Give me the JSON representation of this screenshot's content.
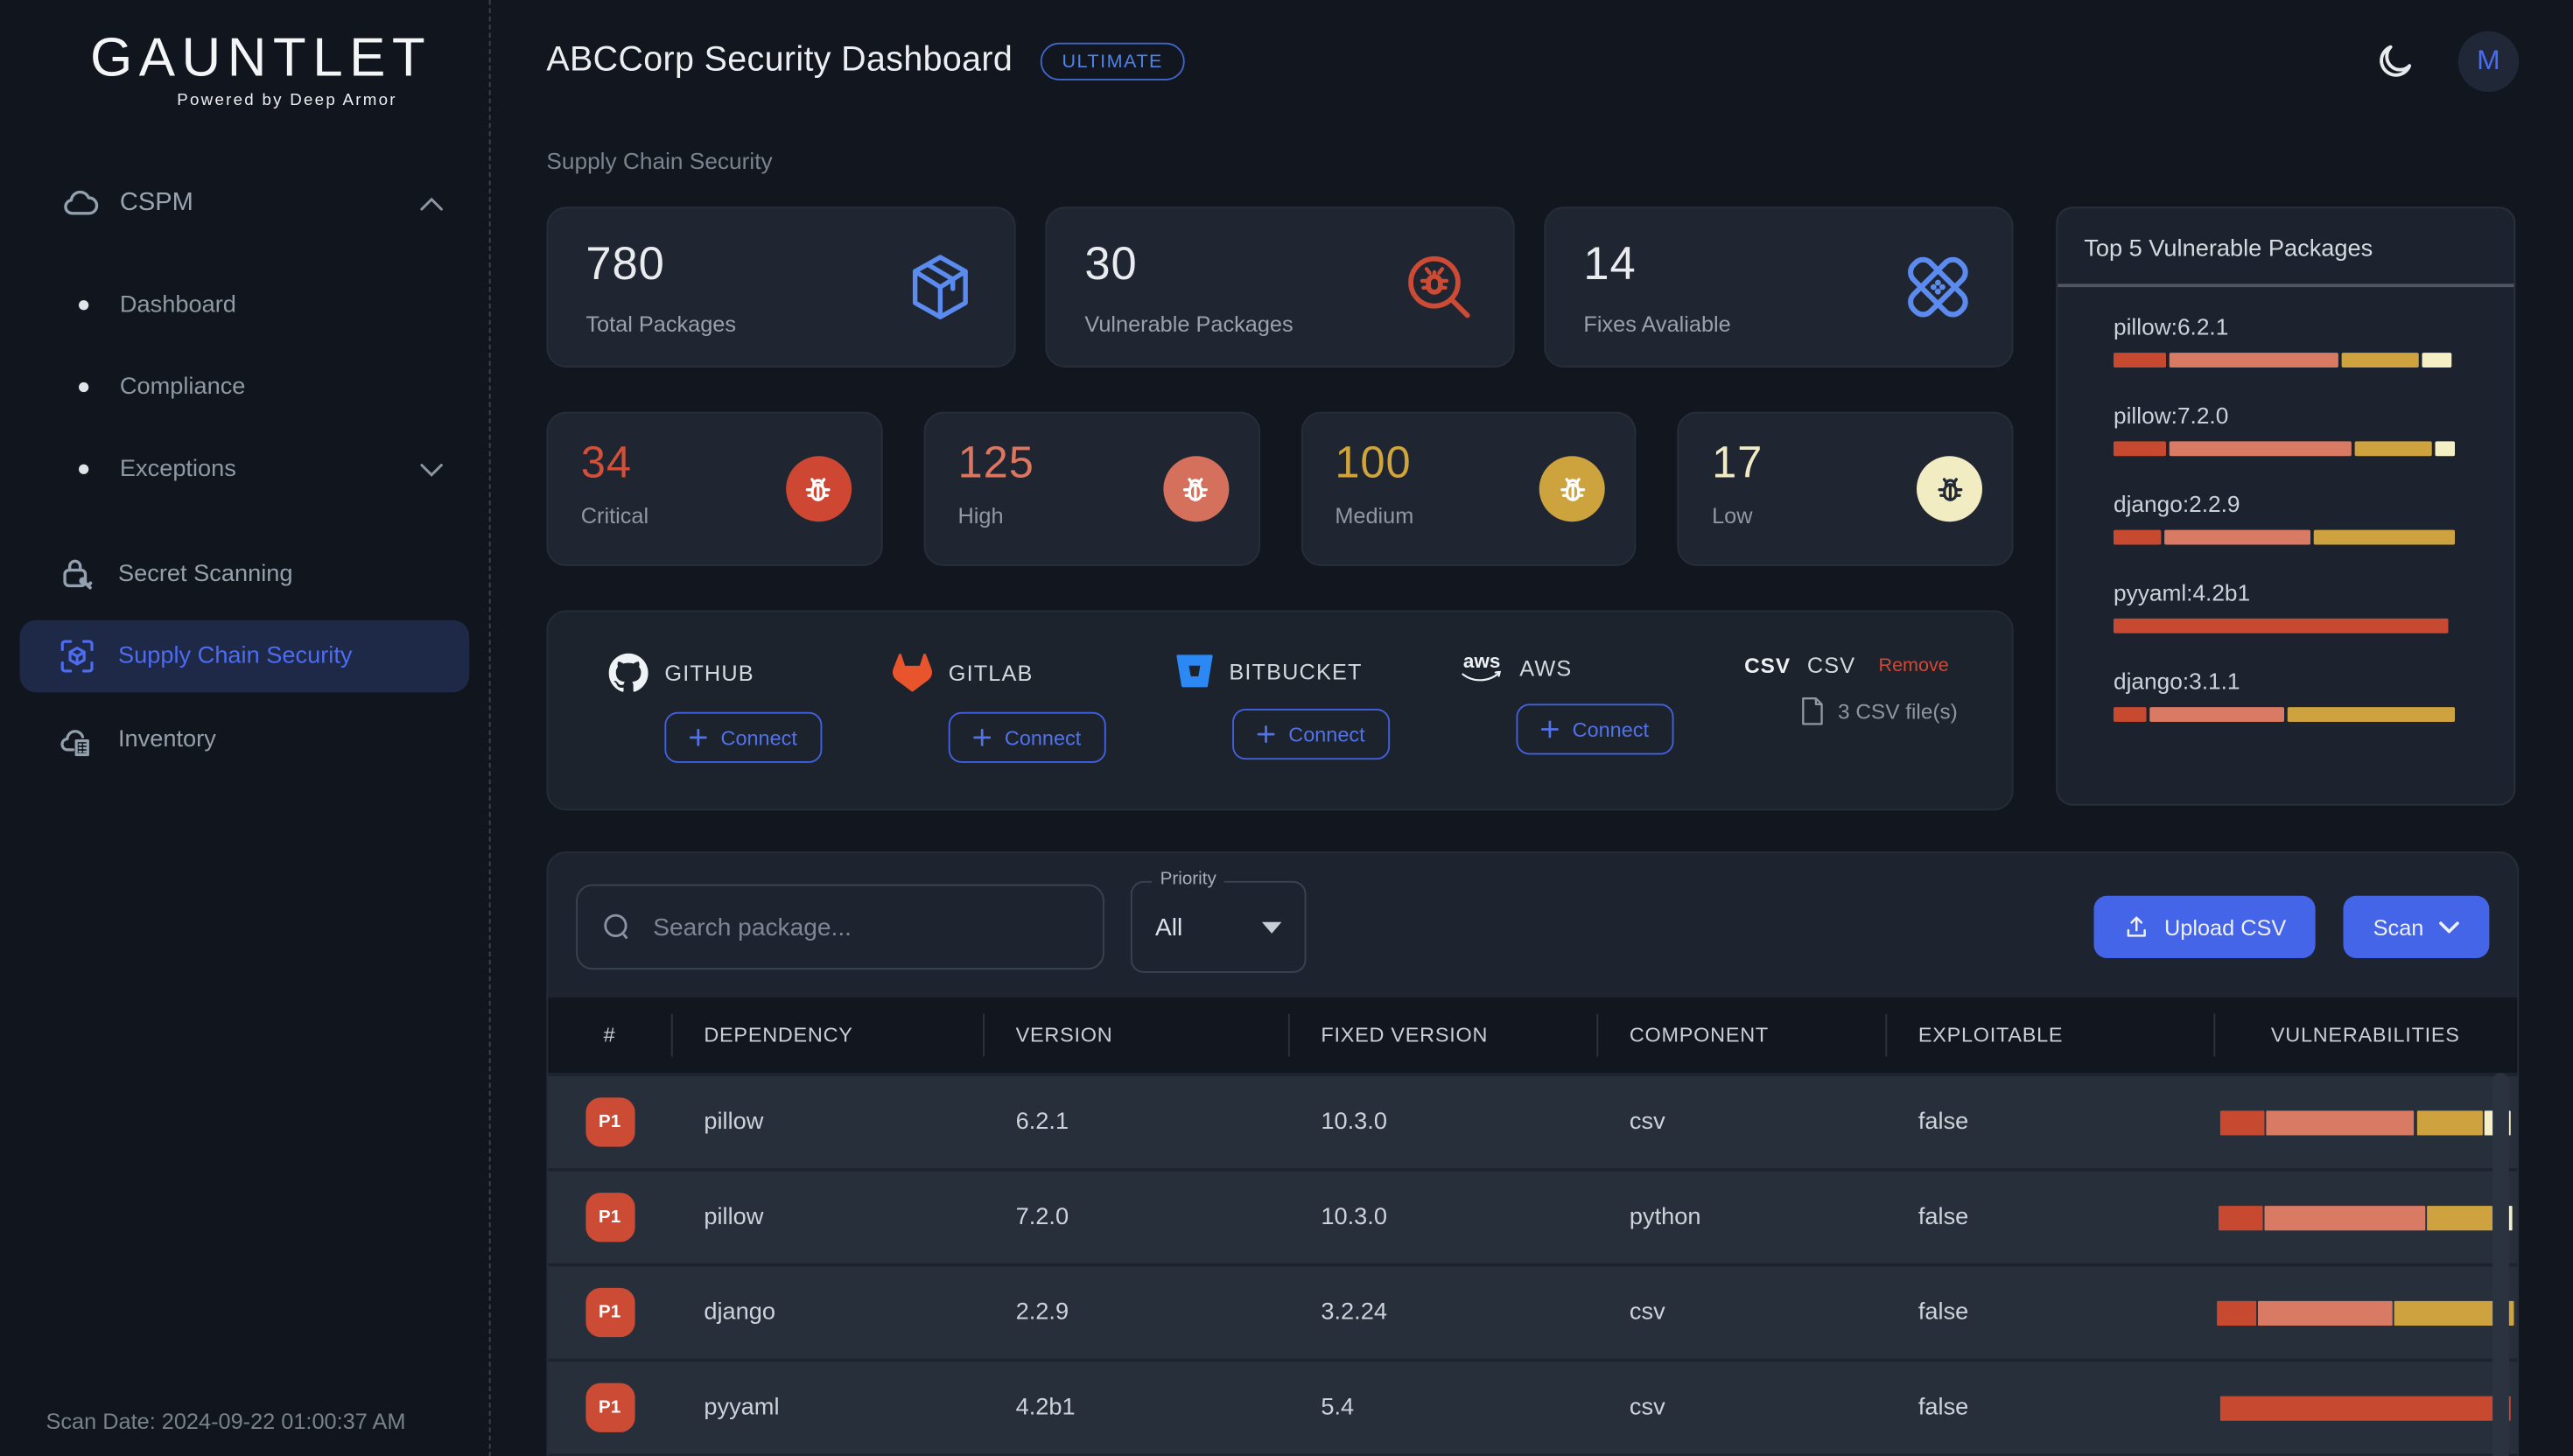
{
  "theme": {
    "accent": "#4565e8",
    "accent_border": "#4161e0",
    "accent_text": "#5272e8",
    "badge_blue": "#4f83e8",
    "active_nav": "#4d6cf0"
  },
  "severity_colors": {
    "critical": "#c7492f",
    "high": "#d97b64",
    "medium": "#cda23f",
    "low": "#f5efc5"
  },
  "brand": {
    "name": "GAUNTLET",
    "tagline": "Powered by Deep Armor"
  },
  "topbar": {
    "title": "ABCCorp Security Dashboard",
    "plan_badge": "ULTIMATE",
    "avatar_initial": "M"
  },
  "page": {
    "subtitle": "Supply Chain Security"
  },
  "sidebar": {
    "cspm_label": "CSPM",
    "sub_items": [
      {
        "label": "Dashboard"
      },
      {
        "label": "Compliance"
      },
      {
        "label": "Exceptions"
      }
    ],
    "items": [
      {
        "label": "Secret Scanning"
      },
      {
        "label": "Supply Chain Security"
      },
      {
        "label": "Inventory"
      }
    ],
    "scan_date": "Scan Date: 2024-09-22 01:00:37 AM"
  },
  "summary_cards": [
    {
      "value": "780",
      "label": "Total Packages"
    },
    {
      "value": "30",
      "label": "Vulnerable Packages"
    },
    {
      "value": "14",
      "label": "Fixes Avaliable"
    }
  ],
  "severity_cards": [
    {
      "value": "34",
      "label": "Critical",
      "color": "#d0503a",
      "icon_bg": "#cd4732",
      "bug_color": "#ffffff"
    },
    {
      "value": "125",
      "label": "High",
      "color": "#dc7661",
      "icon_bg": "#d4705c",
      "bug_color": "#ffffff"
    },
    {
      "value": "100",
      "label": "Medium",
      "color": "#d2a43c",
      "icon_bg": "#cda33e",
      "bug_color": "#ffffff"
    },
    {
      "value": "17",
      "label": "Low",
      "color": "#f0ebc4",
      "icon_bg": "#f2ecc2",
      "bug_color": "#222a36"
    }
  ],
  "integrations": {
    "providers": [
      {
        "name": "GITHUB",
        "connect_label": "Connect"
      },
      {
        "name": "GITLAB",
        "connect_label": "Connect"
      },
      {
        "name": "BITBUCKET",
        "connect_label": "Connect"
      },
      {
        "name": "AWS",
        "connect_label": "Connect",
        "icon_text": "aws"
      }
    ],
    "csv": {
      "icon_text": "CSV",
      "name": "CSV",
      "remove_label": "Remove",
      "files_label": "3 CSV file(s)"
    }
  },
  "top5": {
    "title": "Top 5 Vulnerable Packages",
    "items": [
      {
        "name": "pillow:6.2.1",
        "segments": [
          {
            "sev": "critical",
            "pct": 16
          },
          {
            "sev": "high",
            "pct": 51
          },
          {
            "sev": "medium",
            "pct": 23
          },
          {
            "sev": "low",
            "pct": 9
          }
        ]
      },
      {
        "name": "pillow:7.2.0",
        "segments": [
          {
            "sev": "critical",
            "pct": 16
          },
          {
            "sev": "high",
            "pct": 55
          },
          {
            "sev": "medium",
            "pct": 23
          },
          {
            "sev": "low",
            "pct": 6
          }
        ]
      },
      {
        "name": "django:2.2.9",
        "segments": [
          {
            "sev": "critical",
            "pct": 14
          },
          {
            "sev": "high",
            "pct": 44
          },
          {
            "sev": "medium",
            "pct": 42
          }
        ]
      },
      {
        "name": "pyyaml:4.2b1",
        "segments": [
          {
            "sev": "critical",
            "pct": 98
          }
        ]
      },
      {
        "name": "django:3.1.1",
        "segments": [
          {
            "sev": "critical",
            "pct": 10
          },
          {
            "sev": "high",
            "pct": 40
          },
          {
            "sev": "medium",
            "pct": 50
          }
        ]
      }
    ]
  },
  "toolbar": {
    "search_placeholder": "Search package...",
    "priority_label": "Priority",
    "priority_value": "All",
    "upload_label": "Upload CSV",
    "scan_label": "Scan"
  },
  "table": {
    "columns": [
      "#",
      "DEPENDENCY",
      "VERSION",
      "FIXED VERSION",
      "COMPONENT",
      "EXPLOITABLE",
      "VULNERABILITIES"
    ],
    "rows": [
      {
        "priority": "P1",
        "dependency": "pillow",
        "version": "6.2.1",
        "fixed_version": "10.3.0",
        "component": "csv",
        "exploitable": "false",
        "segments": [
          {
            "sev": "critical",
            "pct": 15
          },
          {
            "sev": "high",
            "pct": 50
          },
          {
            "sev": "medium",
            "pct": 22
          },
          {
            "sev": "low",
            "pct": 9
          }
        ]
      },
      {
        "priority": "P1",
        "dependency": "pillow",
        "version": "7.2.0",
        "fixed_version": "10.3.0",
        "component": "python",
        "exploitable": "false",
        "segments": [
          {
            "sev": "critical",
            "pct": 15
          },
          {
            "sev": "high",
            "pct": 54
          },
          {
            "sev": "medium",
            "pct": 22
          },
          {
            "sev": "low",
            "pct": 6
          }
        ]
      },
      {
        "priority": "P1",
        "dependency": "django",
        "version": "2.2.9",
        "fixed_version": "3.2.24",
        "component": "csv",
        "exploitable": "false",
        "segments": [
          {
            "sev": "critical",
            "pct": 13
          },
          {
            "sev": "high",
            "pct": 45
          },
          {
            "sev": "medium",
            "pct": 40
          }
        ]
      },
      {
        "priority": "P1",
        "dependency": "pyyaml",
        "version": "4.2b1",
        "fixed_version": "5.4",
        "component": "csv",
        "exploitable": "false",
        "segments": [
          {
            "sev": "critical",
            "pct": 96
          }
        ]
      }
    ]
  }
}
